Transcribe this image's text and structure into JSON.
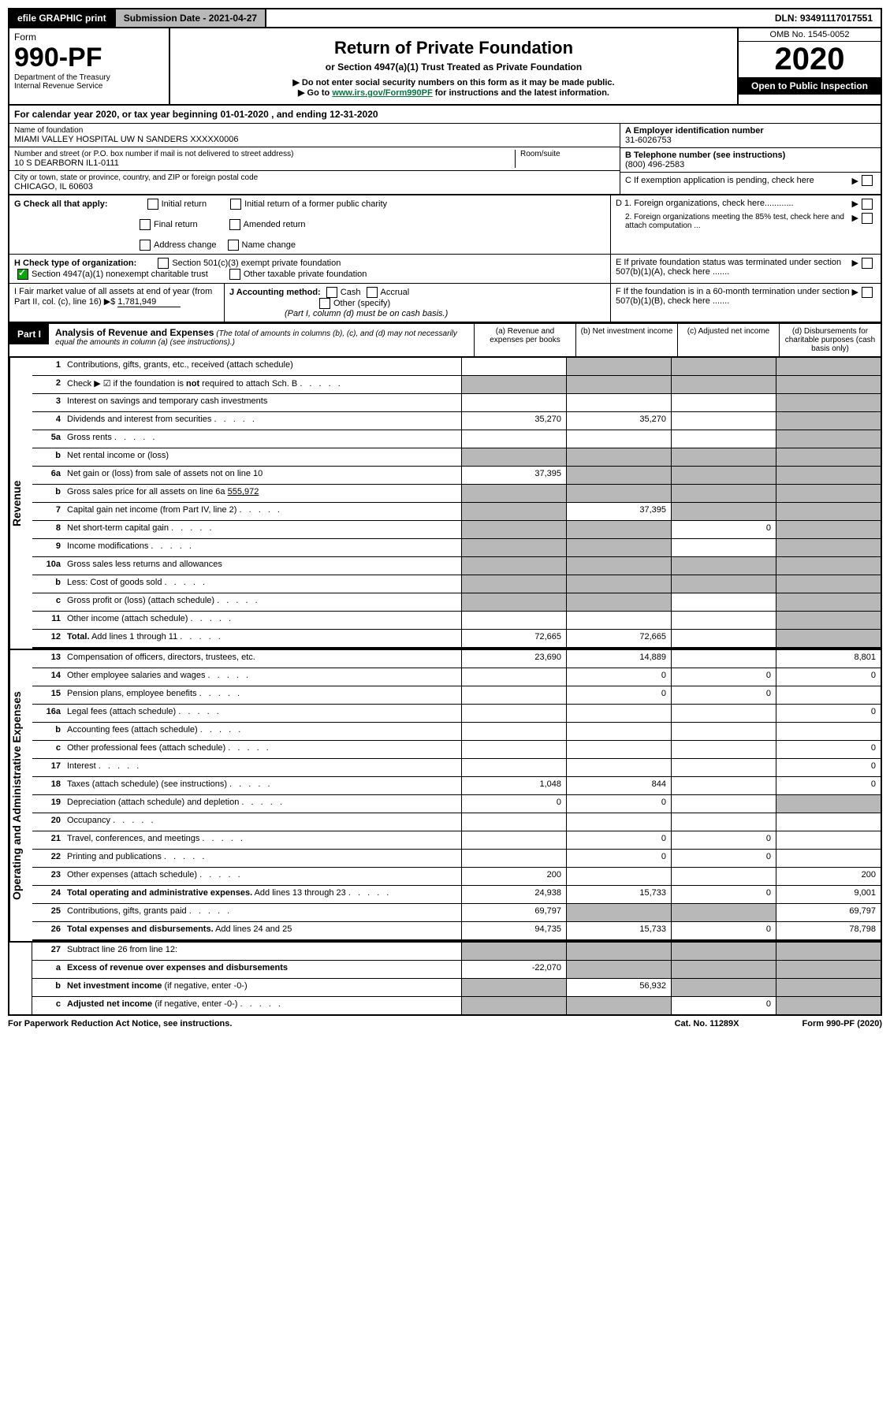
{
  "topbar": {
    "efile": "efile GRAPHIC print",
    "submission": "Submission Date - 2021-04-27",
    "dln": "DLN: 93491117017551"
  },
  "header": {
    "form_label": "Form",
    "form_num": "990-PF",
    "dept": "Department of the Treasury",
    "irs": "Internal Revenue Service",
    "title": "Return of Private Foundation",
    "subtitle": "or Section 4947(a)(1) Trust Treated as Private Foundation",
    "note1": "▶ Do not enter social security numbers on this form as it may be made public.",
    "note2_a": "▶ Go to ",
    "note2_link": "www.irs.gov/Form990PF",
    "note2_b": " for instructions and the latest information.",
    "omb": "OMB No. 1545-0052",
    "year": "2020",
    "open": "Open to Public Inspection"
  },
  "calyear": "For calendar year 2020, or tax year beginning 01-01-2020              , and ending 12-31-2020",
  "info": {
    "name_label": "Name of foundation",
    "name": "MIAMI VALLEY HOSPITAL UW N SANDERS XXXXX0006",
    "addr_label": "Number and street (or P.O. box number if mail is not delivered to street address)",
    "addr": "10 S DEARBORN IL1-0111",
    "room_label": "Room/suite",
    "city_label": "City or town, state or province, country, and ZIP or foreign postal code",
    "city": "CHICAGO, IL  60603",
    "ein_label": "A Employer identification number",
    "ein": "31-6026753",
    "tel_label": "B Telephone number (see instructions)",
    "tel": "(800) 496-2583",
    "c_label": "C If exemption application is pending, check here",
    "d1": "D 1. Foreign organizations, check here............",
    "d2": "2. Foreign organizations meeting the 85% test, check here and attach computation ...",
    "e_label": "E  If private foundation status was terminated under section 507(b)(1)(A), check here .......",
    "f_label": "F  If the foundation is in a 60-month termination under section 507(b)(1)(B), check here ......."
  },
  "g": {
    "label": "G Check all that apply:",
    "opts": [
      "Initial return",
      "Final return",
      "Address change",
      "Initial return of a former public charity",
      "Amended return",
      "Name change"
    ]
  },
  "h": {
    "label": "H Check type of organization:",
    "opt1": "Section 501(c)(3) exempt private foundation",
    "opt2": "Section 4947(a)(1) nonexempt charitable trust",
    "opt3": "Other taxable private foundation"
  },
  "i": {
    "label": "I Fair market value of all assets at end of year (from Part II, col. (c), line 16) ▶$ ",
    "val": "1,781,949"
  },
  "j": {
    "label": "J Accounting method:",
    "cash": "Cash",
    "accrual": "Accrual",
    "other": "Other (specify)",
    "note": "(Part I, column (d) must be on cash basis.)"
  },
  "analysis": {
    "part": "Part I",
    "title": "Analysis of Revenue and Expenses",
    "subtitle": " (The total of amounts in columns (b), (c), and (d) may not necessarily equal the amounts in column (a) (see instructions).)",
    "col_a": "(a)   Revenue and expenses per books",
    "col_b": "(b)   Net investment income",
    "col_c": "(c)   Adjusted net income",
    "col_d": "(d)   Disbursements for charitable purposes (cash basis only)"
  },
  "sections": {
    "revenue": "Revenue",
    "opex": "Operating and Administrative Expenses"
  },
  "rows": [
    {
      "n": "1",
      "lbl": "Contributions, gifts, grants, etc., received (attach schedule)",
      "a": "",
      "b": "grey",
      "c": "grey",
      "d": "grey"
    },
    {
      "n": "2",
      "lbl": "Check ▶ ☑ if the foundation is <b>not</b> required to attach Sch. B",
      "a": "grey",
      "b": "grey",
      "c": "grey",
      "d": "grey",
      "dotted": true
    },
    {
      "n": "3",
      "lbl": "Interest on savings and temporary cash investments",
      "a": "",
      "b": "",
      "c": "",
      "d": "grey"
    },
    {
      "n": "4",
      "lbl": "Dividends and interest from securities",
      "a": "35,270",
      "b": "35,270",
      "c": "",
      "d": "grey",
      "dotted": true
    },
    {
      "n": "5a",
      "lbl": "Gross rents",
      "a": "",
      "b": "",
      "c": "",
      "d": "grey",
      "dotted": true
    },
    {
      "n": "b",
      "lbl": "Net rental income or (loss)",
      "a": "grey",
      "b": "grey",
      "c": "grey",
      "d": "grey"
    },
    {
      "n": "6a",
      "lbl": "Net gain or (loss) from sale of assets not on line 10",
      "a": "37,395",
      "b": "grey",
      "c": "grey",
      "d": "grey"
    },
    {
      "n": "b",
      "lbl": "Gross sales price for all assets on line 6a <u>            555,972</u>",
      "a": "grey",
      "b": "grey",
      "c": "grey",
      "d": "grey"
    },
    {
      "n": "7",
      "lbl": "Capital gain net income (from Part IV, line 2)",
      "a": "grey",
      "b": "37,395",
      "c": "grey",
      "d": "grey",
      "dotted": true
    },
    {
      "n": "8",
      "lbl": "Net short-term capital gain",
      "a": "grey",
      "b": "grey",
      "c": "0",
      "d": "grey",
      "dotted": true
    },
    {
      "n": "9",
      "lbl": "Income modifications",
      "a": "grey",
      "b": "grey",
      "c": "",
      "d": "grey",
      "dotted": true
    },
    {
      "n": "10a",
      "lbl": "Gross sales less returns and allowances",
      "a": "grey",
      "b": "grey",
      "c": "grey",
      "d": "grey"
    },
    {
      "n": "b",
      "lbl": "Less: Cost of goods sold",
      "a": "grey",
      "b": "grey",
      "c": "grey",
      "d": "grey",
      "dotted": true
    },
    {
      "n": "c",
      "lbl": "Gross profit or (loss) (attach schedule)",
      "a": "grey",
      "b": "grey",
      "c": "",
      "d": "grey",
      "dotted": true
    },
    {
      "n": "11",
      "lbl": "Other income (attach schedule)",
      "a": "",
      "b": "",
      "c": "",
      "d": "grey",
      "dotted": true
    },
    {
      "n": "12",
      "lbl": "<b>Total.</b> Add lines 1 through 11",
      "a": "72,665",
      "b": "72,665",
      "c": "",
      "d": "grey",
      "dotted": true,
      "thick": true
    }
  ],
  "opex_rows": [
    {
      "n": "13",
      "lbl": "Compensation of officers, directors, trustees, etc.",
      "a": "23,690",
      "b": "14,889",
      "c": "",
      "d": "8,801"
    },
    {
      "n": "14",
      "lbl": "Other employee salaries and wages",
      "a": "",
      "b": "0",
      "c": "0",
      "d": "0",
      "dotted": true
    },
    {
      "n": "15",
      "lbl": "Pension plans, employee benefits",
      "a": "",
      "b": "0",
      "c": "0",
      "d": "",
      "dotted": true
    },
    {
      "n": "16a",
      "lbl": "Legal fees (attach schedule)",
      "a": "",
      "b": "",
      "c": "",
      "d": "0",
      "dotted": true
    },
    {
      "n": "b",
      "lbl": "Accounting fees (attach schedule)",
      "a": "",
      "b": "",
      "c": "",
      "d": "",
      "dotted": true
    },
    {
      "n": "c",
      "lbl": "Other professional fees (attach schedule)",
      "a": "",
      "b": "",
      "c": "",
      "d": "0",
      "dotted": true
    },
    {
      "n": "17",
      "lbl": "Interest",
      "a": "",
      "b": "",
      "c": "",
      "d": "0",
      "dotted": true
    },
    {
      "n": "18",
      "lbl": "Taxes (attach schedule) (see instructions)",
      "a": "1,048",
      "b": "844",
      "c": "",
      "d": "0",
      "dotted": true
    },
    {
      "n": "19",
      "lbl": "Depreciation (attach schedule) and depletion",
      "a": "0",
      "b": "0",
      "c": "",
      "d": "grey",
      "dotted": true
    },
    {
      "n": "20",
      "lbl": "Occupancy",
      "a": "",
      "b": "",
      "c": "",
      "d": "",
      "dotted": true
    },
    {
      "n": "21",
      "lbl": "Travel, conferences, and meetings",
      "a": "",
      "b": "0",
      "c": "0",
      "d": "",
      "dotted": true
    },
    {
      "n": "22",
      "lbl": "Printing and publications",
      "a": "",
      "b": "0",
      "c": "0",
      "d": "",
      "dotted": true
    },
    {
      "n": "23",
      "lbl": "Other expenses (attach schedule)",
      "a": "200",
      "b": "",
      "c": "",
      "d": "200",
      "dotted": true
    },
    {
      "n": "24",
      "lbl": "<b>Total operating and administrative expenses.</b> Add lines 13 through 23",
      "a": "24,938",
      "b": "15,733",
      "c": "0",
      "d": "9,001",
      "dotted": true
    },
    {
      "n": "25",
      "lbl": "Contributions, gifts, grants paid",
      "a": "69,797",
      "b": "grey",
      "c": "grey",
      "d": "69,797",
      "dotted": true
    },
    {
      "n": "26",
      "lbl": "<b>Total expenses and disbursements.</b> Add lines 24 and 25",
      "a": "94,735",
      "b": "15,733",
      "c": "0",
      "d": "78,798",
      "thick": true
    }
  ],
  "bottom_rows": [
    {
      "n": "27",
      "lbl": "Subtract line 26 from line 12:",
      "a": "grey",
      "b": "grey",
      "c": "grey",
      "d": "grey"
    },
    {
      "n": "a",
      "lbl": "<b>Excess of revenue over expenses and disbursements</b>",
      "a": "-22,070",
      "b": "grey",
      "c": "grey",
      "d": "grey"
    },
    {
      "n": "b",
      "lbl": "<b>Net investment income</b> (if negative, enter -0-)",
      "a": "grey",
      "b": "56,932",
      "c": "grey",
      "d": "grey"
    },
    {
      "n": "c",
      "lbl": "<b>Adjusted net income</b> (if negative, enter -0-)",
      "a": "grey",
      "b": "grey",
      "c": "0",
      "d": "grey",
      "dotted": true
    }
  ],
  "footer": {
    "left": "For Paperwork Reduction Act Notice, see instructions.",
    "mid": "Cat. No. 11289X",
    "right": "Form 990-PF (2020)"
  }
}
